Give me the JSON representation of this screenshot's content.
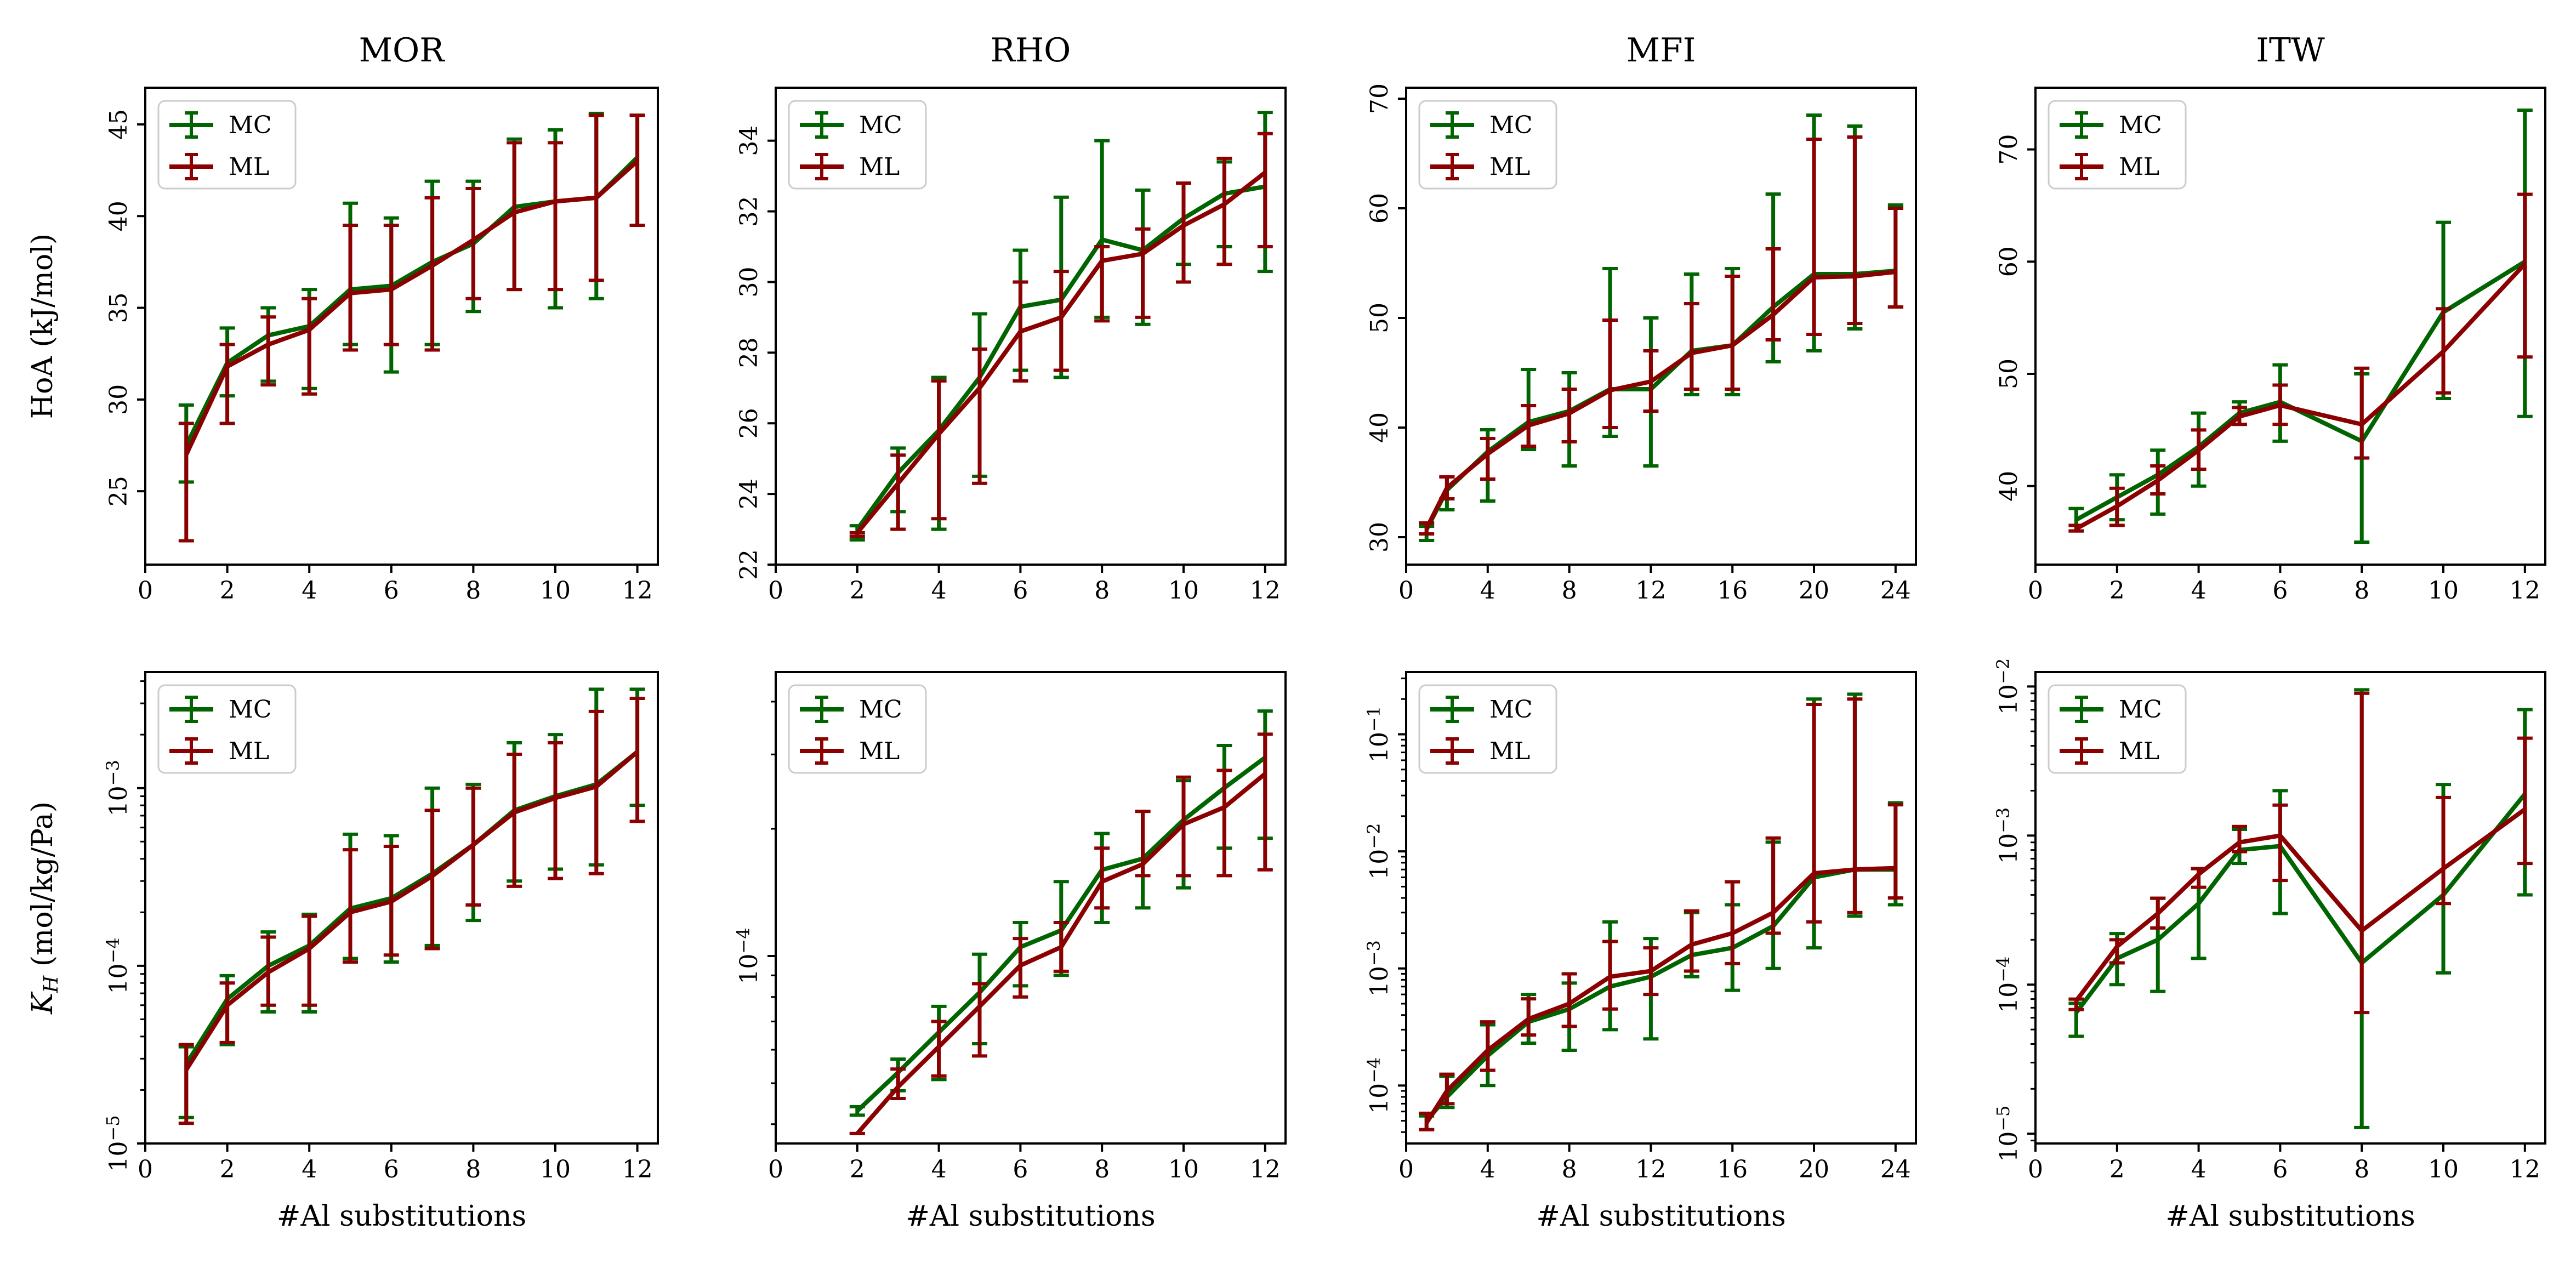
{
  "colors": {
    "MC": "#006400",
    "ML": "#8b0000"
  },
  "chart_data": [
    {
      "type": "line",
      "title": "MOR",
      "ylabel": "HoA (kJ/mol)",
      "xlabel": "",
      "yscale": "linear",
      "xlim": [
        0,
        12.5
      ],
      "ylim": [
        21,
        47
      ],
      "xticks": [
        0,
        2,
        4,
        6,
        8,
        10,
        12
      ],
      "xtick_labels": [
        "0",
        "2",
        "4",
        "6",
        "8",
        "10",
        "12"
      ],
      "yticks": [
        25,
        30,
        35,
        40,
        45
      ],
      "ytick_labels": [
        "25",
        "30",
        "35",
        "40",
        "45"
      ],
      "legend": "top-left",
      "x": [
        1,
        2,
        3,
        4,
        5,
        6,
        7,
        8,
        9,
        10,
        11,
        12
      ],
      "series": [
        {
          "name": "MC",
          "values": [
            27.5,
            32.0,
            33.5,
            34.0,
            36.0,
            36.2,
            37.5,
            38.5,
            40.5,
            40.8,
            41.0,
            43.2
          ],
          "lower": [
            25.5,
            30.2,
            31.0,
            30.6,
            33.0,
            31.5,
            33.0,
            34.8,
            36.0,
            35.0,
            35.5,
            39.5
          ],
          "upper": [
            29.7,
            33.9,
            35.0,
            36.0,
            40.7,
            39.9,
            41.9,
            41.9,
            44.2,
            44.7,
            45.6,
            45.5
          ]
        },
        {
          "name": "ML",
          "values": [
            27.0,
            31.8,
            33.0,
            33.8,
            35.8,
            36.0,
            37.3,
            38.7,
            40.2,
            40.8,
            41.0,
            43.0
          ],
          "lower": [
            22.3,
            28.7,
            30.8,
            30.3,
            32.7,
            33.0,
            32.7,
            35.5,
            36.0,
            36.0,
            36.5,
            39.5
          ],
          "upper": [
            28.7,
            33.0,
            34.5,
            35.5,
            39.5,
            39.5,
            41.0,
            41.5,
            44.0,
            44.0,
            45.5,
            45.5
          ]
        }
      ]
    },
    {
      "type": "line",
      "title": "RHO",
      "ylabel": "",
      "xlabel": "",
      "yscale": "linear",
      "xlim": [
        0,
        12.5
      ],
      "ylim": [
        22,
        35.5
      ],
      "xticks": [
        0,
        2,
        4,
        6,
        8,
        10,
        12
      ],
      "xtick_labels": [
        "0",
        "2",
        "4",
        "6",
        "8",
        "10",
        "12"
      ],
      "yticks": [
        22,
        24,
        26,
        28,
        30,
        32,
        34
      ],
      "ytick_labels": [
        "22",
        "24",
        "26",
        "28",
        "30",
        "32",
        "34"
      ],
      "legend": "top-left",
      "x": [
        2,
        3,
        4,
        5,
        6,
        7,
        8,
        9,
        10,
        11,
        12
      ],
      "series": [
        {
          "name": "MC",
          "values": [
            23.0,
            24.6,
            25.8,
            27.3,
            29.3,
            29.5,
            31.2,
            30.9,
            31.8,
            32.5,
            32.7
          ],
          "lower": [
            22.7,
            23.5,
            23.0,
            24.5,
            27.5,
            27.3,
            29.0,
            28.8,
            30.5,
            31.0,
            30.3
          ],
          "upper": [
            23.1,
            25.3,
            27.3,
            29.1,
            30.9,
            32.4,
            34.0,
            32.6,
            32.8,
            33.4,
            34.8
          ]
        },
        {
          "name": "ML",
          "values": [
            22.9,
            24.3,
            25.7,
            27.0,
            28.6,
            29.0,
            30.6,
            30.8,
            31.6,
            32.2,
            33.1
          ],
          "lower": [
            22.8,
            23.0,
            23.3,
            24.3,
            27.2,
            27.5,
            28.9,
            29.0,
            30.0,
            30.5,
            31.0
          ],
          "upper": [
            22.9,
            25.1,
            27.2,
            28.1,
            30.0,
            30.3,
            31.0,
            31.5,
            32.8,
            33.5,
            34.2
          ]
        }
      ]
    },
    {
      "type": "line",
      "title": "MFI",
      "ylabel": "",
      "xlabel": "",
      "yscale": "linear",
      "xlim": [
        0,
        25
      ],
      "ylim": [
        27.5,
        71
      ],
      "xticks": [
        0,
        4,
        8,
        12,
        16,
        20,
        24
      ],
      "xtick_labels": [
        "0",
        "4",
        "8",
        "12",
        "16",
        "20",
        "24"
      ],
      "yticks": [
        30,
        40,
        50,
        60,
        70
      ],
      "ytick_labels": [
        "30",
        "40",
        "50",
        "60",
        "70"
      ],
      "legend": "top-left",
      "x": [
        1,
        2,
        4,
        6,
        8,
        10,
        12,
        14,
        16,
        18,
        20,
        22,
        24
      ],
      "series": [
        {
          "name": "MC",
          "values": [
            30.7,
            34.3,
            37.8,
            40.5,
            41.5,
            43.5,
            43.5,
            47.0,
            47.5,
            51.0,
            54.0,
            54.0,
            54.3
          ],
          "lower": [
            29.7,
            32.5,
            33.3,
            38.0,
            36.5,
            39.2,
            36.5,
            43.0,
            43.0,
            46.0,
            47.0,
            49.0,
            51.0
          ],
          "upper": [
            31.0,
            35.5,
            39.8,
            45.3,
            45.0,
            54.5,
            50.0,
            54.0,
            54.5,
            61.3,
            68.5,
            67.5,
            60.3
          ]
        },
        {
          "name": "ML",
          "values": [
            30.8,
            34.5,
            37.6,
            40.2,
            41.3,
            43.4,
            44.2,
            46.8,
            47.5,
            50.3,
            53.7,
            53.8,
            54.2
          ],
          "lower": [
            30.3,
            33.5,
            35.3,
            38.3,
            38.7,
            40.0,
            41.5,
            43.5,
            43.5,
            48.0,
            48.5,
            49.5,
            51.0
          ],
          "upper": [
            31.3,
            35.5,
            39.0,
            42.0,
            43.5,
            49.8,
            47.0,
            51.3,
            53.8,
            56.3,
            66.3,
            66.5,
            60.0
          ]
        }
      ]
    },
    {
      "type": "line",
      "title": "ITW",
      "ylabel": "",
      "xlabel": "",
      "yscale": "linear",
      "xlim": [
        0,
        12.5
      ],
      "ylim": [
        33,
        75.5
      ],
      "xticks": [
        0,
        2,
        4,
        6,
        8,
        10,
        12
      ],
      "xtick_labels": [
        "0",
        "2",
        "4",
        "6",
        "8",
        "10",
        "12"
      ],
      "yticks": [
        40,
        50,
        60,
        70
      ],
      "ytick_labels": [
        "40",
        "50",
        "60",
        "70"
      ],
      "legend": "top-left",
      "x": [
        1,
        2,
        3,
        4,
        5,
        6,
        8,
        10,
        12
      ],
      "series": [
        {
          "name": "MC",
          "values": [
            37.0,
            39.0,
            41.0,
            43.5,
            46.5,
            47.5,
            44.0,
            55.5,
            60.0
          ],
          "lower": [
            36.0,
            37.0,
            37.5,
            40.0,
            45.5,
            44.0,
            35.0,
            47.8,
            46.2
          ],
          "upper": [
            38.0,
            41.0,
            43.2,
            46.5,
            47.5,
            50.8,
            50.0,
            63.5,
            73.5
          ]
        },
        {
          "name": "ML",
          "values": [
            36.2,
            38.2,
            40.5,
            43.2,
            46.2,
            47.2,
            45.5,
            52.0,
            59.8
          ],
          "lower": [
            36.0,
            36.5,
            39.3,
            41.5,
            45.5,
            45.5,
            42.5,
            48.3,
            51.5
          ],
          "upper": [
            36.5,
            39.8,
            41.8,
            45.0,
            47.0,
            49.0,
            50.5,
            55.8,
            66.0
          ]
        }
      ]
    },
    {
      "type": "line",
      "title": "",
      "ylabel": "K_H (mol/kg/Pa)",
      "xlabel": "#Al substitutions",
      "yscale": "log",
      "xlim": [
        0,
        12.5
      ],
      "ylim": [
        1e-05,
        0.0045
      ],
      "xticks": [
        0,
        2,
        4,
        6,
        8,
        10,
        12
      ],
      "xtick_labels": [
        "0",
        "2",
        "4",
        "6",
        "8",
        "10",
        "12"
      ],
      "yticks": [
        1e-05,
        0.0001,
        0.001
      ],
      "ytick_labels": [
        "10^-5",
        "10^-4",
        "10^-3"
      ],
      "legend": "top-left",
      "x": [
        1,
        2,
        3,
        4,
        5,
        6,
        7,
        8,
        9,
        10,
        11,
        12
      ],
      "series": [
        {
          "name": "MC",
          "values": [
            2.8e-05,
            6.5e-05,
            0.0001,
            0.00013,
            0.00021,
            0.00024,
            0.00033,
            0.00048,
            0.00075,
            0.0009,
            0.00105,
            0.0016
          ],
          "lower": [
            1.4e-05,
            3.6e-05,
            5.5e-05,
            5.5e-05,
            0.00011,
            0.000105,
            0.00013,
            0.00018,
            0.0003,
            0.00035,
            0.00037,
            0.0008
          ],
          "upper": [
            3.5e-05,
            8.8e-05,
            0.000155,
            0.000195,
            0.00055,
            0.00054,
            0.001,
            0.00105,
            0.0018,
            0.002,
            0.0036,
            0.0036
          ]
        },
        {
          "name": "ML",
          "values": [
            2.6e-05,
            6e-05,
            9.2e-05,
            0.000125,
            0.0002,
            0.00023,
            0.00032,
            0.00048,
            0.00073,
            0.00088,
            0.00102,
            0.0016
          ],
          "lower": [
            1.3e-05,
            3.7e-05,
            6e-05,
            6e-05,
            0.000105,
            0.000115,
            0.000125,
            0.00022,
            0.00028,
            0.00031,
            0.00033,
            0.00065
          ],
          "upper": [
            3.6e-05,
            8e-05,
            0.000145,
            0.00019,
            0.00045,
            0.00047,
            0.00075,
            0.001,
            0.00155,
            0.0018,
            0.0027,
            0.0032
          ]
        }
      ]
    },
    {
      "type": "line",
      "title": "",
      "ylabel": "",
      "xlabel": "#Al substitutions",
      "yscale": "log",
      "xlim": [
        0,
        12.5
      ],
      "ylim": [
        3.6e-05,
        0.00047
      ],
      "xticks": [
        0,
        2,
        4,
        6,
        8,
        10,
        12
      ],
      "xtick_labels": [
        "0",
        "2",
        "4",
        "6",
        "8",
        "10",
        "12"
      ],
      "yticks": [
        0.0001
      ],
      "ytick_labels": [
        "10^-4"
      ],
      "legend": "top-left",
      "x": [
        2,
        3,
        4,
        5,
        6,
        7,
        8,
        9,
        10,
        11,
        12
      ],
      "series": [
        {
          "name": "MC",
          "values": [
            4.3e-05,
            5.3e-05,
            6.6e-05,
            8.2e-05,
            0.000105,
            0.000115,
            0.00016,
            0.00017,
            0.00021,
            0.00025,
            0.000295
          ],
          "lower": [
            4.2e-05,
            4.8e-05,
            5.1e-05,
            6.2e-05,
            8.5e-05,
            9e-05,
            0.00012,
            0.00013,
            0.000145,
            0.00018,
            0.00019
          ],
          "upper": [
            4.4e-05,
            5.7e-05,
            7.6e-05,
            0.000101,
            0.00012,
            0.00015,
            0.000195,
            0.00022,
            0.00026,
            0.000315,
            0.00038
          ]
        },
        {
          "name": "ML",
          "values": [
            3.8e-05,
            4.9e-05,
            6.1e-05,
            7.6e-05,
            9.5e-05,
            0.000105,
            0.00015,
            0.000165,
            0.000205,
            0.000225,
            0.00027
          ],
          "lower": [
            3.8e-05,
            4.6e-05,
            5.2e-05,
            5.8e-05,
            8e-05,
            9.2e-05,
            0.00013,
            0.000155,
            0.000155,
            0.000155,
            0.00016
          ],
          "upper": [
            3.8e-05,
            5.4e-05,
            7e-05,
            8.6e-05,
            0.00011,
            0.00012,
            0.00018,
            0.00022,
            0.000265,
            0.000275,
            0.000335
          ]
        }
      ]
    },
    {
      "type": "line",
      "title": "",
      "ylabel": "",
      "xlabel": "#Al substitutions",
      "yscale": "log",
      "xlim": [
        0,
        25
      ],
      "ylim": [
        3.2e-05,
        0.34
      ],
      "xticks": [
        0,
        4,
        8,
        12,
        16,
        20,
        24
      ],
      "xtick_labels": [
        "0",
        "4",
        "8",
        "12",
        "16",
        "20",
        "24"
      ],
      "yticks": [
        0.0001,
        0.001,
        0.01,
        0.1
      ],
      "ytick_labels": [
        "10^-4",
        "10^-3",
        "10^-2",
        "10^-1"
      ],
      "legend": "top-left",
      "x": [
        1,
        2,
        4,
        6,
        8,
        10,
        12,
        14,
        16,
        18,
        20,
        22,
        24
      ],
      "series": [
        {
          "name": "MC",
          "values": [
            5e-05,
            8e-05,
            0.00018,
            0.00035,
            0.00045,
            0.0007,
            0.00085,
            0.0013,
            0.0015,
            0.0023,
            0.006,
            0.007,
            0.007
          ],
          "lower": [
            4.2e-05,
            6.5e-05,
            0.0001,
            0.00023,
            0.0002,
            0.0003,
            0.00025,
            0.00085,
            0.00065,
            0.001,
            0.0015,
            0.0028,
            0.0035
          ],
          "upper": [
            5.5e-05,
            0.00012,
            0.00033,
            0.0006,
            0.00075,
            0.0025,
            0.0018,
            0.003,
            0.0035,
            0.012,
            0.2,
            0.22,
            0.026
          ]
        },
        {
          "name": "ML",
          "values": [
            4.8e-05,
            9e-05,
            0.0002,
            0.00037,
            0.0005,
            0.00085,
            0.00095,
            0.0016,
            0.002,
            0.003,
            0.0065,
            0.007,
            0.0072
          ],
          "lower": [
            4.2e-05,
            7e-05,
            0.000135,
            0.00027,
            0.00032,
            0.00045,
            0.0006,
            0.00095,
            0.0011,
            0.002,
            0.0025,
            0.003,
            0.004
          ],
          "upper": [
            5.8e-05,
            0.000125,
            0.00035,
            0.00055,
            0.0009,
            0.0017,
            0.0015,
            0.0031,
            0.0055,
            0.013,
            0.18,
            0.2,
            0.025
          ]
        }
      ]
    },
    {
      "type": "line",
      "title": "",
      "ylabel": "",
      "xlabel": "#Al substitutions",
      "yscale": "log",
      "xlim": [
        0,
        12.5
      ],
      "ylim": [
        8.6e-06,
        0.0125
      ],
      "xticks": [
        0,
        2,
        4,
        6,
        8,
        10,
        12
      ],
      "xtick_labels": [
        "0",
        "2",
        "4",
        "6",
        "8",
        "10",
        "12"
      ],
      "yticks": [
        1e-05,
        0.0001,
        0.001,
        0.01
      ],
      "ytick_labels": [
        "10^-5",
        "10^-4",
        "10^-3",
        "10^-2"
      ],
      "legend": "top-left",
      "x": [
        1,
        2,
        3,
        4,
        5,
        6,
        8,
        10,
        12
      ],
      "series": [
        {
          "name": "MC",
          "values": [
            6.5e-05,
            0.00015,
            0.0002,
            0.00035,
            0.0008,
            0.00085,
            0.00014,
            0.0004,
            0.0019
          ],
          "lower": [
            4.5e-05,
            0.0001,
            9e-05,
            0.00015,
            0.00065,
            0.0003,
            1.1e-05,
            0.00012,
            0.0004
          ],
          "upper": [
            7.5e-05,
            0.00022,
            0.00038,
            0.0006,
            0.0011,
            0.002,
            0.0095,
            0.0022,
            0.007
          ]
        },
        {
          "name": "ML",
          "values": [
            7.8e-05,
            0.00018,
            0.0003,
            0.00055,
            0.0009,
            0.001,
            0.00023,
            0.0006,
            0.0015
          ],
          "lower": [
            6.8e-05,
            0.00014,
            0.00024,
            0.00045,
            0.00078,
            0.0005,
            6.5e-05,
            0.00035,
            0.00065
          ],
          "upper": [
            8e-05,
            0.0002,
            0.00038,
            0.0006,
            0.00115,
            0.0016,
            0.009,
            0.0018,
            0.0045
          ]
        }
      ]
    }
  ]
}
